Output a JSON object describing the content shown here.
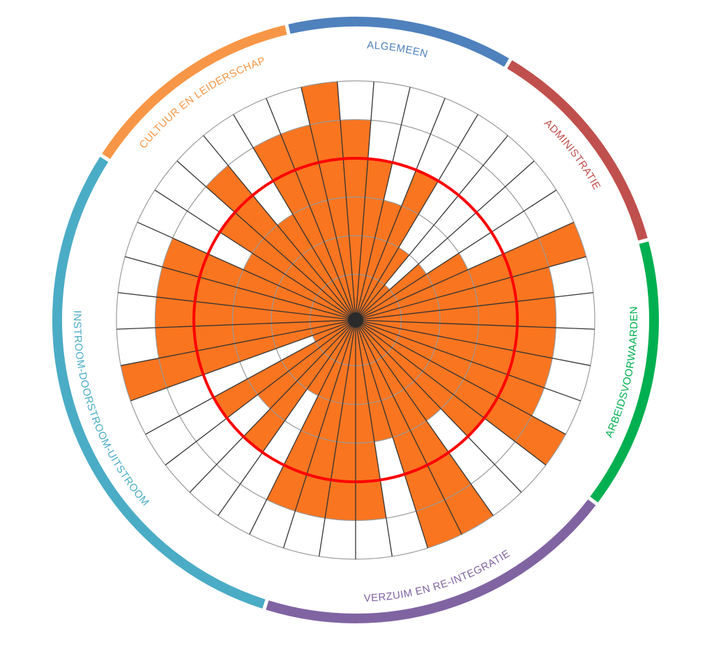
{
  "chart_data": {
    "type": "polar-bar",
    "levels": 6,
    "threshold": 4,
    "categories": [
      {
        "name": "ALGEMEEN",
        "color": "#4f81bd",
        "values": [
          6,
          5,
          4,
          3,
          4
        ]
      },
      {
        "name": "ADMINISTRATIE",
        "color": "#c0504d",
        "values": [
          2,
          1,
          2,
          3,
          6
        ]
      },
      {
        "name": "ARBEIDSVOORWAARDEN",
        "color": "#00b050",
        "values": [
          5,
          5,
          5,
          5,
          5,
          6
        ]
      },
      {
        "name": "VERZUIM EN RE-INTEGRATIE",
        "color": "#8064a2",
        "values": [
          4,
          3,
          6,
          6,
          3,
          5,
          5,
          5
        ]
      },
      {
        "name": "INSTROOM-DOORSTROOM-UITSTROOM",
        "color": "#4bacc6",
        "values": [
          5,
          2,
          4,
          3,
          4,
          1,
          6,
          5,
          5,
          5,
          5,
          3
        ]
      },
      {
        "name": "CULTUUR EN LEIDERSCHAP",
        "color": "#f79646",
        "values": [
          4,
          5,
          3,
          5,
          5
        ]
      }
    ],
    "colors": {
      "bar": "#f97520",
      "threshold": "#ff0000",
      "spoke": "#333333",
      "ring": "#9a9a9a"
    }
  }
}
